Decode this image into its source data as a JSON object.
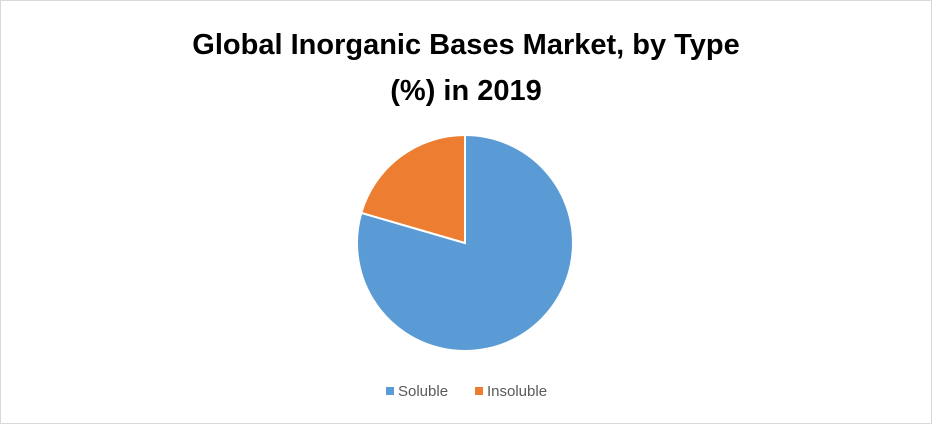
{
  "chart_data": {
    "type": "pie",
    "title": "Global Inorganic Bases Market, by Type (%) in 2019",
    "categories": [
      "Soluble",
      "Insoluble"
    ],
    "values": [
      79.5,
      20.5
    ],
    "colors": [
      "#5b9bd5",
      "#ed7d31"
    ],
    "legend": "bottom"
  }
}
